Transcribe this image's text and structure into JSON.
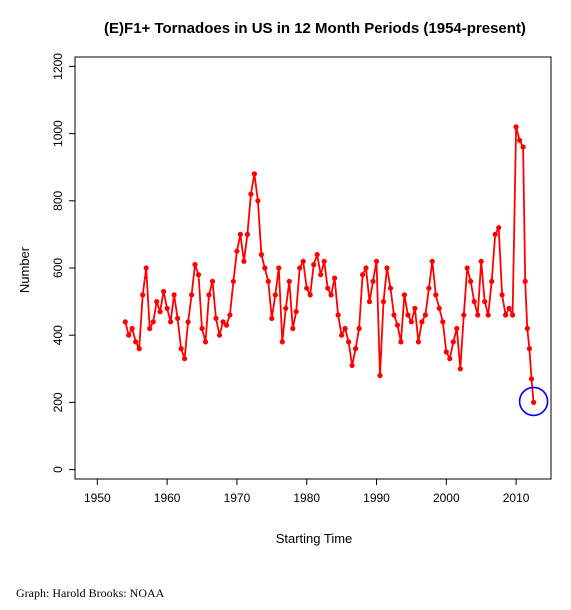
{
  "caption": "Graph: Harold Brooks: NOAA",
  "chart_data": {
    "type": "line",
    "title": "(E)F1+ Tornadoes in US in 12 Month Periods (1954-present)",
    "xlabel": "Starting Time",
    "ylabel": "Number",
    "xlim": [
      1946.8,
      2015
    ],
    "ylim": [
      -28,
      1228
    ],
    "x_ticks": [
      1950,
      1960,
      1970,
      1980,
      1990,
      2000,
      2010
    ],
    "y_ticks": [
      0,
      200,
      400,
      600,
      800,
      1000,
      1200
    ],
    "grid": false,
    "legend": "none",
    "series": [
      {
        "color": "#ff0000",
        "marker": "circle",
        "x": [
          1954.0,
          1954.5,
          1955.0,
          1955.5,
          1956.0,
          1956.5,
          1957.0,
          1957.5,
          1958.0,
          1958.5,
          1959.0,
          1959.5,
          1960.0,
          1960.5,
          1961.0,
          1961.5,
          1962.0,
          1962.5,
          1963.0,
          1963.5,
          1964.0,
          1964.5,
          1965.0,
          1965.5,
          1966.0,
          1966.5,
          1967.0,
          1967.5,
          1968.0,
          1968.5,
          1969.0,
          1969.5,
          1970.0,
          1970.5,
          1971.0,
          1971.5,
          1972.0,
          1972.5,
          1973.0,
          1973.5,
          1974.0,
          1974.5,
          1975.0,
          1975.5,
          1976.0,
          1976.5,
          1977.0,
          1977.5,
          1978.0,
          1978.5,
          1979.0,
          1979.5,
          1980.0,
          1980.5,
          1981.0,
          1981.5,
          1982.0,
          1982.5,
          1983.0,
          1983.5,
          1984.0,
          1984.5,
          1985.0,
          1985.5,
          1986.0,
          1986.5,
          1987.0,
          1987.5,
          1988.0,
          1988.5,
          1989.0,
          1989.5,
          1990.0,
          1990.5,
          1991.0,
          1991.5,
          1992.0,
          1992.5,
          1993.0,
          1993.5,
          1994.0,
          1994.5,
          1995.0,
          1995.5,
          1996.0,
          1996.5,
          1997.0,
          1997.5,
          1998.0,
          1998.5,
          1999.0,
          1999.5,
          2000.0,
          2000.5,
          2001.0,
          2001.5,
          2002.0,
          2002.5,
          2003.0,
          2003.5,
          2004.0,
          2004.5,
          2005.0,
          2005.5,
          2006.0,
          2006.5,
          2007.0,
          2007.5,
          2008.0,
          2008.5,
          2009.0,
          2009.5,
          2010.0,
          2010.5,
          2011.0,
          2011.3,
          2011.6,
          2011.9,
          2012.2,
          2012.5
        ],
        "y": [
          440,
          400,
          420,
          380,
          360,
          520,
          600,
          420,
          440,
          500,
          470,
          530,
          480,
          440,
          520,
          450,
          360,
          330,
          440,
          520,
          610,
          580,
          420,
          380,
          520,
          560,
          450,
          400,
          440,
          430,
          460,
          560,
          650,
          700,
          620,
          700,
          820,
          880,
          800,
          640,
          600,
          560,
          450,
          520,
          600,
          380,
          480,
          560,
          420,
          470,
          600,
          620,
          540,
          520,
          610,
          640,
          580,
          620,
          540,
          520,
          570,
          460,
          400,
          420,
          380,
          310,
          360,
          420,
          580,
          600,
          500,
          560,
          620,
          280,
          500,
          600,
          540,
          460,
          430,
          380,
          520,
          460,
          440,
          480,
          380,
          440,
          460,
          540,
          620,
          520,
          480,
          440,
          350,
          330,
          380,
          420,
          300,
          460,
          600,
          560,
          500,
          460,
          620,
          500,
          460,
          560,
          700,
          720,
          520,
          460,
          480,
          460,
          1020,
          980,
          960,
          560,
          420,
          360,
          270,
          200
        ]
      }
    ]
  }
}
